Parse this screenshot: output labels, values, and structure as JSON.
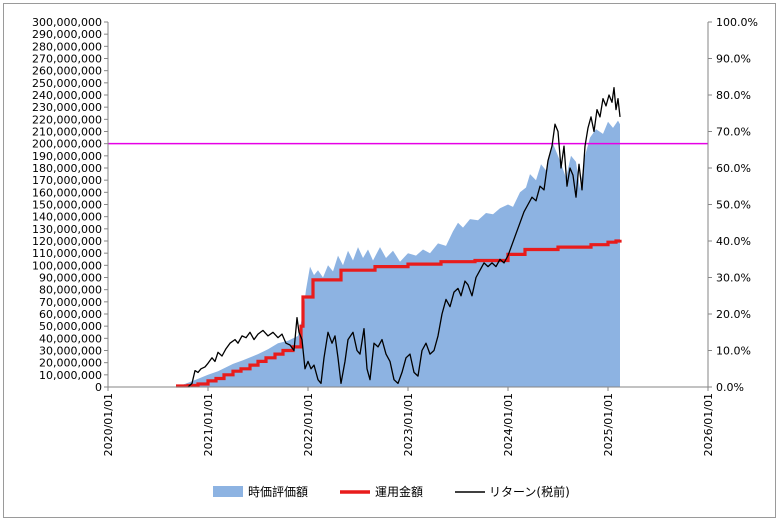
{
  "chart_data": {
    "type": "area",
    "x_axis": {
      "ticks": [
        "2020/01/01",
        "2021/01/01",
        "2022/01/01",
        "2023/01/01",
        "2024/01/01",
        "2025/01/01",
        "2026/01/01"
      ],
      "range": [
        2020.0,
        2026.0
      ]
    },
    "y_left": {
      "range": [
        0,
        300000000
      ],
      "step": 10000000,
      "ticks": [
        "0",
        "10,000,000",
        "20,000,000",
        "30,000,000",
        "40,000,000",
        "50,000,000",
        "60,000,000",
        "70,000,000",
        "80,000,000",
        "90,000,000",
        "100,000,000",
        "110,000,000",
        "120,000,000",
        "130,000,000",
        "140,000,000",
        "150,000,000",
        "160,000,000",
        "170,000,000",
        "180,000,000",
        "190,000,000",
        "200,000,000",
        "210,000,000",
        "220,000,000",
        "230,000,000",
        "240,000,000",
        "250,000,000",
        "260,000,000",
        "270,000,000",
        "280,000,000",
        "290,000,000",
        "300,000,000"
      ]
    },
    "y_right": {
      "range": [
        0,
        1.0
      ],
      "ticks": [
        "0.0%",
        "10.0%",
        "20.0%",
        "30.0%",
        "40.0%",
        "50.0%",
        "60.0%",
        "70.0%",
        "80.0%",
        "90.0%",
        "100.0%"
      ]
    },
    "reference_line": {
      "value": 200000000,
      "color": "#e600e6"
    },
    "legend": {
      "placement": "bottom"
    },
    "series": [
      {
        "name": "時価評価額",
        "kind": "area",
        "axis": "left",
        "color": "#8db3e2",
        "points": [
          [
            2020.68,
            500000
          ],
          [
            2020.75,
            2000000
          ],
          [
            2020.85,
            5000000
          ],
          [
            2021.0,
            10000000
          ],
          [
            2021.1,
            13000000
          ],
          [
            2021.25,
            19000000
          ],
          [
            2021.35,
            22000000
          ],
          [
            2021.5,
            27000000
          ],
          [
            2021.6,
            31000000
          ],
          [
            2021.7,
            36000000
          ],
          [
            2021.8,
            38000000
          ],
          [
            2021.9,
            42000000
          ],
          [
            2021.95,
            60000000
          ],
          [
            2021.98,
            80000000
          ],
          [
            2022.02,
            99000000
          ],
          [
            2022.06,
            92000000
          ],
          [
            2022.1,
            96000000
          ],
          [
            2022.15,
            90000000
          ],
          [
            2022.2,
            100000000
          ],
          [
            2022.25,
            95000000
          ],
          [
            2022.3,
            108000000
          ],
          [
            2022.35,
            100000000
          ],
          [
            2022.4,
            112000000
          ],
          [
            2022.45,
            104000000
          ],
          [
            2022.5,
            115000000
          ],
          [
            2022.55,
            106000000
          ],
          [
            2022.6,
            113000000
          ],
          [
            2022.65,
            104000000
          ],
          [
            2022.72,
            115000000
          ],
          [
            2022.78,
            106000000
          ],
          [
            2022.85,
            112000000
          ],
          [
            2022.92,
            103000000
          ],
          [
            2023.0,
            110000000
          ],
          [
            2023.08,
            108000000
          ],
          [
            2023.15,
            113000000
          ],
          [
            2023.22,
            110000000
          ],
          [
            2023.3,
            118000000
          ],
          [
            2023.38,
            116000000
          ],
          [
            2023.45,
            128000000
          ],
          [
            2023.5,
            135000000
          ],
          [
            2023.55,
            131000000
          ],
          [
            2023.62,
            138000000
          ],
          [
            2023.7,
            137000000
          ],
          [
            2023.78,
            143000000
          ],
          [
            2023.85,
            142000000
          ],
          [
            2023.92,
            147000000
          ],
          [
            2024.0,
            150000000
          ],
          [
            2024.05,
            148000000
          ],
          [
            2024.12,
            160000000
          ],
          [
            2024.18,
            164000000
          ],
          [
            2024.22,
            175000000
          ],
          [
            2024.28,
            170000000
          ],
          [
            2024.33,
            183000000
          ],
          [
            2024.38,
            178000000
          ],
          [
            2024.45,
            200000000
          ],
          [
            2024.52,
            186000000
          ],
          [
            2024.58,
            172000000
          ],
          [
            2024.63,
            190000000
          ],
          [
            2024.68,
            185000000
          ],
          [
            2024.72,
            163000000
          ],
          [
            2024.77,
            190000000
          ],
          [
            2024.82,
            205000000
          ],
          [
            2024.88,
            212000000
          ],
          [
            2024.95,
            208000000
          ],
          [
            2025.0,
            218000000
          ],
          [
            2025.05,
            213000000
          ],
          [
            2025.1,
            219000000
          ],
          [
            2025.12,
            216000000
          ]
        ]
      },
      {
        "name": "運用金額",
        "kind": "step",
        "axis": "left",
        "color": "#e81c1c",
        "points": [
          [
            2020.68,
            800000
          ],
          [
            2020.8,
            1200000
          ],
          [
            2020.9,
            2500000
          ],
          [
            2021.0,
            5000000
          ],
          [
            2021.08,
            7000000
          ],
          [
            2021.16,
            10000000
          ],
          [
            2021.25,
            13000000
          ],
          [
            2021.33,
            15000000
          ],
          [
            2021.42,
            18000000
          ],
          [
            2021.5,
            21000000
          ],
          [
            2021.58,
            24000000
          ],
          [
            2021.67,
            27000000
          ],
          [
            2021.75,
            30000000
          ],
          [
            2021.85,
            33000000
          ],
          [
            2021.93,
            50000000
          ],
          [
            2021.95,
            74000000
          ],
          [
            2022.05,
            88000000
          ],
          [
            2022.33,
            96000000
          ],
          [
            2022.67,
            99000000
          ],
          [
            2023.0,
            101000000
          ],
          [
            2023.33,
            103000000
          ],
          [
            2023.67,
            104000000
          ],
          [
            2024.0,
            109000000
          ],
          [
            2024.17,
            113000000
          ],
          [
            2024.5,
            115000000
          ],
          [
            2024.83,
            117000000
          ],
          [
            2025.0,
            119000000
          ],
          [
            2025.08,
            120000000
          ],
          [
            2025.12,
            121000000
          ]
        ]
      },
      {
        "name": "リターン(税前)",
        "kind": "line",
        "axis": "right",
        "color": "#000000",
        "points": [
          [
            2020.8,
            0.0
          ],
          [
            2020.84,
            0.01
          ],
          [
            2020.87,
            0.045
          ],
          [
            2020.9,
            0.04
          ],
          [
            2020.93,
            0.05
          ],
          [
            2020.97,
            0.055
          ],
          [
            2021.0,
            0.065
          ],
          [
            2021.04,
            0.08
          ],
          [
            2021.07,
            0.07
          ],
          [
            2021.1,
            0.095
          ],
          [
            2021.14,
            0.085
          ],
          [
            2021.18,
            0.105
          ],
          [
            2021.22,
            0.12
          ],
          [
            2021.27,
            0.13
          ],
          [
            2021.3,
            0.12
          ],
          [
            2021.34,
            0.14
          ],
          [
            2021.38,
            0.135
          ],
          [
            2021.42,
            0.15
          ],
          [
            2021.46,
            0.13
          ],
          [
            2021.5,
            0.145
          ],
          [
            2021.55,
            0.155
          ],
          [
            2021.6,
            0.14
          ],
          [
            2021.65,
            0.15
          ],
          [
            2021.7,
            0.135
          ],
          [
            2021.74,
            0.145
          ],
          [
            2021.78,
            0.12
          ],
          [
            2021.82,
            0.115
          ],
          [
            2021.86,
            0.1
          ],
          [
            2021.89,
            0.19
          ],
          [
            2021.91,
            0.15
          ],
          [
            2021.94,
            0.13
          ],
          [
            2021.97,
            0.05
          ],
          [
            2022.0,
            0.07
          ],
          [
            2022.03,
            0.05
          ],
          [
            2022.06,
            0.06
          ],
          [
            2022.1,
            0.02
          ],
          [
            2022.13,
            0.01
          ],
          [
            2022.16,
            0.08
          ],
          [
            2022.2,
            0.15
          ],
          [
            2022.24,
            0.12
          ],
          [
            2022.27,
            0.14
          ],
          [
            2022.3,
            0.08
          ],
          [
            2022.33,
            0.01
          ],
          [
            2022.37,
            0.07
          ],
          [
            2022.4,
            0.13
          ],
          [
            2022.45,
            0.15
          ],
          [
            2022.49,
            0.1
          ],
          [
            2022.52,
            0.09
          ],
          [
            2022.56,
            0.16
          ],
          [
            2022.59,
            0.05
          ],
          [
            2022.62,
            0.02
          ],
          [
            2022.66,
            0.12
          ],
          [
            2022.7,
            0.11
          ],
          [
            2022.74,
            0.13
          ],
          [
            2022.78,
            0.09
          ],
          [
            2022.82,
            0.07
          ],
          [
            2022.86,
            0.02
          ],
          [
            2022.9,
            0.01
          ],
          [
            2022.94,
            0.04
          ],
          [
            2022.98,
            0.08
          ],
          [
            2023.02,
            0.09
          ],
          [
            2023.06,
            0.04
          ],
          [
            2023.1,
            0.03
          ],
          [
            2023.14,
            0.1
          ],
          [
            2023.18,
            0.12
          ],
          [
            2023.22,
            0.09
          ],
          [
            2023.26,
            0.1
          ],
          [
            2023.3,
            0.14
          ],
          [
            2023.34,
            0.2
          ],
          [
            2023.38,
            0.24
          ],
          [
            2023.42,
            0.22
          ],
          [
            2023.46,
            0.26
          ],
          [
            2023.5,
            0.27
          ],
          [
            2023.53,
            0.25
          ],
          [
            2023.57,
            0.29
          ],
          [
            2023.6,
            0.28
          ],
          [
            2023.64,
            0.25
          ],
          [
            2023.68,
            0.3
          ],
          [
            2023.72,
            0.32
          ],
          [
            2023.76,
            0.34
          ],
          [
            2023.8,
            0.33
          ],
          [
            2023.84,
            0.34
          ],
          [
            2023.88,
            0.33
          ],
          [
            2023.92,
            0.35
          ],
          [
            2023.96,
            0.34
          ],
          [
            2024.0,
            0.36
          ],
          [
            2024.04,
            0.39
          ],
          [
            2024.08,
            0.42
          ],
          [
            2024.12,
            0.45
          ],
          [
            2024.16,
            0.48
          ],
          [
            2024.2,
            0.5
          ],
          [
            2024.24,
            0.52
          ],
          [
            2024.28,
            0.51
          ],
          [
            2024.32,
            0.55
          ],
          [
            2024.36,
            0.54
          ],
          [
            2024.4,
            0.62
          ],
          [
            2024.44,
            0.66
          ],
          [
            2024.47,
            0.72
          ],
          [
            2024.5,
            0.7
          ],
          [
            2024.53,
            0.6
          ],
          [
            2024.56,
            0.66
          ],
          [
            2024.59,
            0.55
          ],
          [
            2024.62,
            0.6
          ],
          [
            2024.65,
            0.58
          ],
          [
            2024.68,
            0.52
          ],
          [
            2024.71,
            0.61
          ],
          [
            2024.74,
            0.54
          ],
          [
            2024.77,
            0.66
          ],
          [
            2024.8,
            0.71
          ],
          [
            2024.83,
            0.74
          ],
          [
            2024.86,
            0.7
          ],
          [
            2024.89,
            0.76
          ],
          [
            2024.92,
            0.74
          ],
          [
            2024.95,
            0.79
          ],
          [
            2024.98,
            0.77
          ],
          [
            2025.01,
            0.8
          ],
          [
            2025.04,
            0.78
          ],
          [
            2025.06,
            0.82
          ],
          [
            2025.08,
            0.76
          ],
          [
            2025.1,
            0.79
          ],
          [
            2025.12,
            0.74
          ]
        ]
      }
    ]
  }
}
